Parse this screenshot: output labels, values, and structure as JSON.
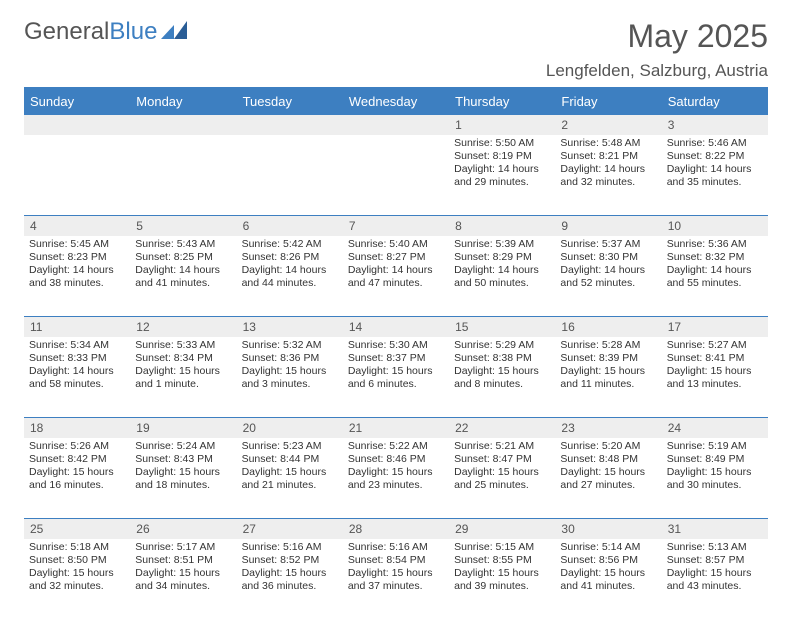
{
  "branding": {
    "name_part1": "General",
    "name_part2": "Blue",
    "color_primary": "#3d7fc1",
    "color_text": "#555555"
  },
  "title": "May 2025",
  "location": "Lengfelden, Salzburg, Austria",
  "day_headers": [
    "Sunday",
    "Monday",
    "Tuesday",
    "Wednesday",
    "Thursday",
    "Friday",
    "Saturday"
  ],
  "weeks": [
    {
      "nums": [
        "",
        "",
        "",
        "",
        "1",
        "2",
        "3"
      ],
      "cells": [
        null,
        null,
        null,
        null,
        {
          "sunrise": "5:50 AM",
          "sunset": "8:19 PM",
          "daylight": "14 hours and 29 minutes."
        },
        {
          "sunrise": "5:48 AM",
          "sunset": "8:21 PM",
          "daylight": "14 hours and 32 minutes."
        },
        {
          "sunrise": "5:46 AM",
          "sunset": "8:22 PM",
          "daylight": "14 hours and 35 minutes."
        }
      ]
    },
    {
      "nums": [
        "4",
        "5",
        "6",
        "7",
        "8",
        "9",
        "10"
      ],
      "cells": [
        {
          "sunrise": "5:45 AM",
          "sunset": "8:23 PM",
          "daylight": "14 hours and 38 minutes."
        },
        {
          "sunrise": "5:43 AM",
          "sunset": "8:25 PM",
          "daylight": "14 hours and 41 minutes."
        },
        {
          "sunrise": "5:42 AM",
          "sunset": "8:26 PM",
          "daylight": "14 hours and 44 minutes."
        },
        {
          "sunrise": "5:40 AM",
          "sunset": "8:27 PM",
          "daylight": "14 hours and 47 minutes."
        },
        {
          "sunrise": "5:39 AM",
          "sunset": "8:29 PM",
          "daylight": "14 hours and 50 minutes."
        },
        {
          "sunrise": "5:37 AM",
          "sunset": "8:30 PM",
          "daylight": "14 hours and 52 minutes."
        },
        {
          "sunrise": "5:36 AM",
          "sunset": "8:32 PM",
          "daylight": "14 hours and 55 minutes."
        }
      ]
    },
    {
      "nums": [
        "11",
        "12",
        "13",
        "14",
        "15",
        "16",
        "17"
      ],
      "cells": [
        {
          "sunrise": "5:34 AM",
          "sunset": "8:33 PM",
          "daylight": "14 hours and 58 minutes."
        },
        {
          "sunrise": "5:33 AM",
          "sunset": "8:34 PM",
          "daylight": "15 hours and 1 minute."
        },
        {
          "sunrise": "5:32 AM",
          "sunset": "8:36 PM",
          "daylight": "15 hours and 3 minutes."
        },
        {
          "sunrise": "5:30 AM",
          "sunset": "8:37 PM",
          "daylight": "15 hours and 6 minutes."
        },
        {
          "sunrise": "5:29 AM",
          "sunset": "8:38 PM",
          "daylight": "15 hours and 8 minutes."
        },
        {
          "sunrise": "5:28 AM",
          "sunset": "8:39 PM",
          "daylight": "15 hours and 11 minutes."
        },
        {
          "sunrise": "5:27 AM",
          "sunset": "8:41 PM",
          "daylight": "15 hours and 13 minutes."
        }
      ]
    },
    {
      "nums": [
        "18",
        "19",
        "20",
        "21",
        "22",
        "23",
        "24"
      ],
      "cells": [
        {
          "sunrise": "5:26 AM",
          "sunset": "8:42 PM",
          "daylight": "15 hours and 16 minutes."
        },
        {
          "sunrise": "5:24 AM",
          "sunset": "8:43 PM",
          "daylight": "15 hours and 18 minutes."
        },
        {
          "sunrise": "5:23 AM",
          "sunset": "8:44 PM",
          "daylight": "15 hours and 21 minutes."
        },
        {
          "sunrise": "5:22 AM",
          "sunset": "8:46 PM",
          "daylight": "15 hours and 23 minutes."
        },
        {
          "sunrise": "5:21 AM",
          "sunset": "8:47 PM",
          "daylight": "15 hours and 25 minutes."
        },
        {
          "sunrise": "5:20 AM",
          "sunset": "8:48 PM",
          "daylight": "15 hours and 27 minutes."
        },
        {
          "sunrise": "5:19 AM",
          "sunset": "8:49 PM",
          "daylight": "15 hours and 30 minutes."
        }
      ]
    },
    {
      "nums": [
        "25",
        "26",
        "27",
        "28",
        "29",
        "30",
        "31"
      ],
      "cells": [
        {
          "sunrise": "5:18 AM",
          "sunset": "8:50 PM",
          "daylight": "15 hours and 32 minutes."
        },
        {
          "sunrise": "5:17 AM",
          "sunset": "8:51 PM",
          "daylight": "15 hours and 34 minutes."
        },
        {
          "sunrise": "5:16 AM",
          "sunset": "8:52 PM",
          "daylight": "15 hours and 36 minutes."
        },
        {
          "sunrise": "5:16 AM",
          "sunset": "8:54 PM",
          "daylight": "15 hours and 37 minutes."
        },
        {
          "sunrise": "5:15 AM",
          "sunset": "8:55 PM",
          "daylight": "15 hours and 39 minutes."
        },
        {
          "sunrise": "5:14 AM",
          "sunset": "8:56 PM",
          "daylight": "15 hours and 41 minutes."
        },
        {
          "sunrise": "5:13 AM",
          "sunset": "8:57 PM",
          "daylight": "15 hours and 43 minutes."
        }
      ]
    }
  ],
  "labels": {
    "sunrise_prefix": "Sunrise: ",
    "sunset_prefix": "Sunset: ",
    "daylight_prefix": "Daylight: "
  }
}
